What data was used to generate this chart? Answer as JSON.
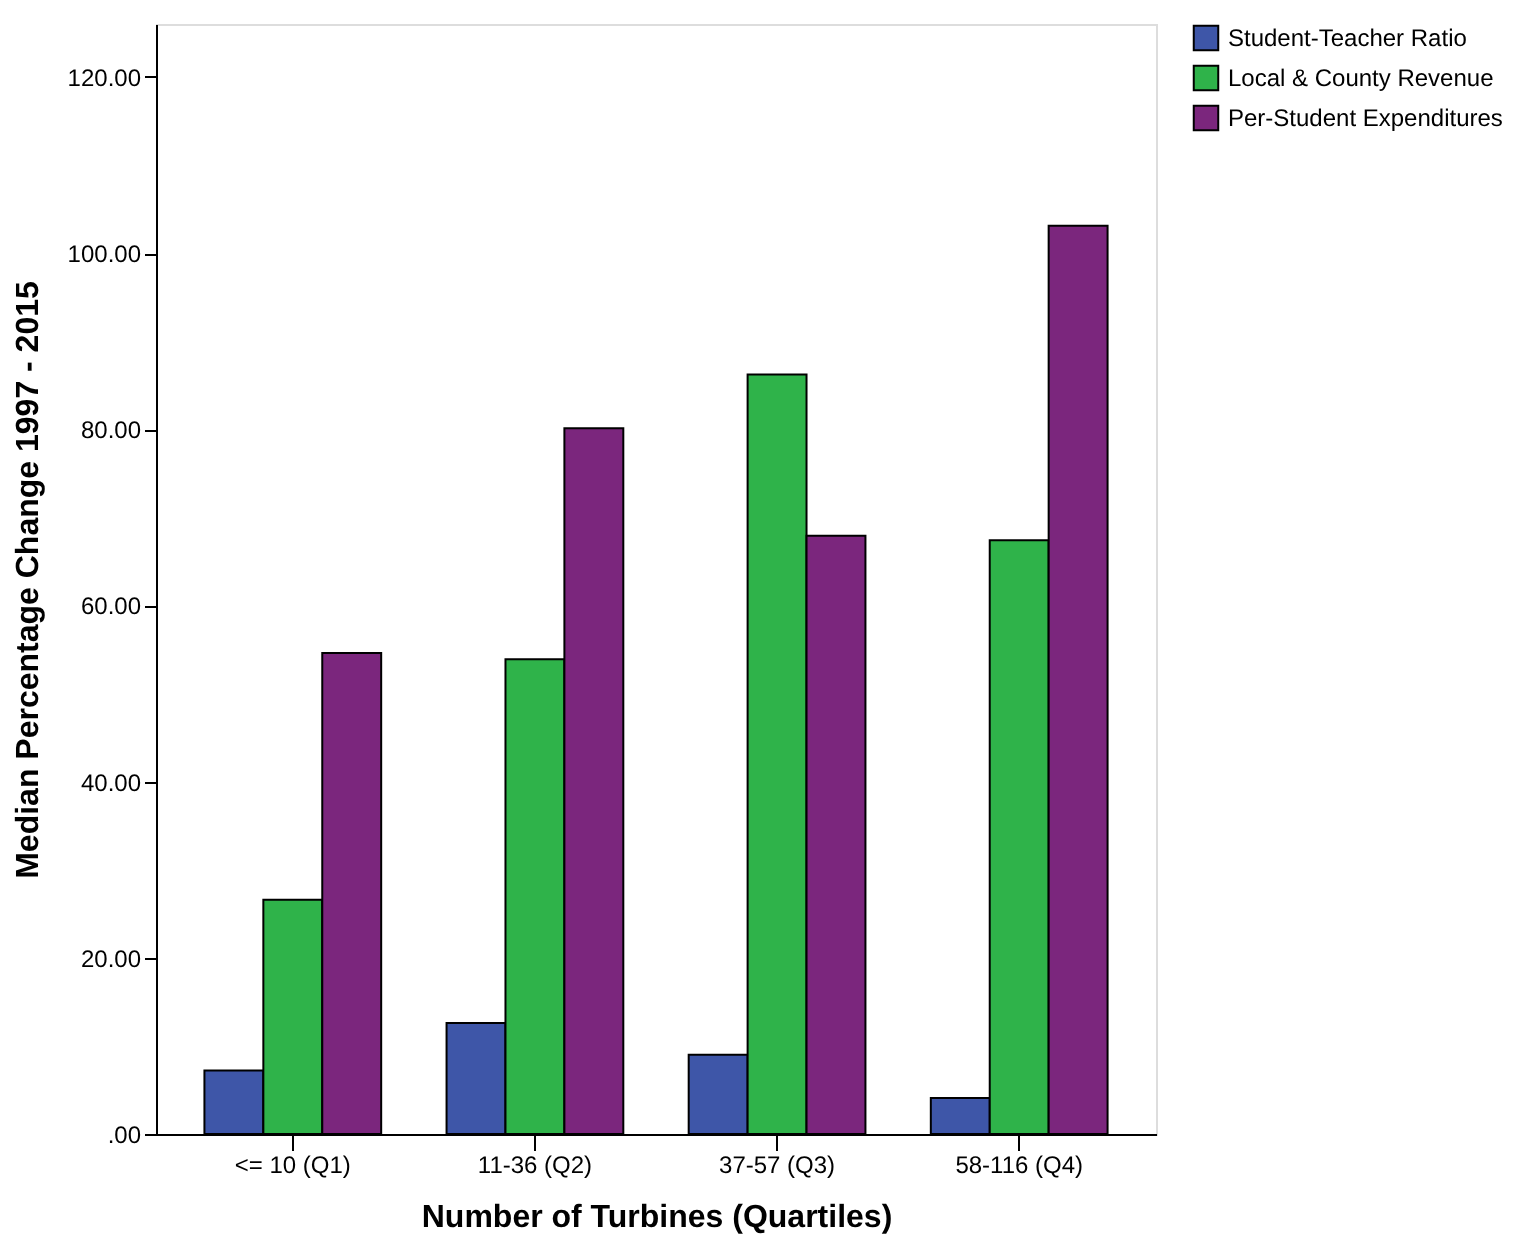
{
  "chart_data": {
    "type": "bar",
    "xlabel": "Number of Turbines (Quartiles)",
    "ylabel": "Median Percentage Change 1997 - 2015",
    "categories": [
      "<= 10 (Q1)",
      "11-36 (Q2)",
      "37-57 (Q3)",
      "58-116 (Q4)"
    ],
    "series": [
      {
        "name": "Student-Teacher Ratio",
        "color": "#3e56a8",
        "values": [
          7.2,
          12.6,
          9.0,
          4.1
        ]
      },
      {
        "name": "Local & County Revenue",
        "color": "#2fb34a",
        "values": [
          26.6,
          53.9,
          86.2,
          67.4
        ]
      },
      {
        "name": "Per-Student Expenditures",
        "color": "#7b267d",
        "values": [
          54.6,
          80.1,
          67.9,
          103.1
        ]
      }
    ],
    "ylim": [
      0,
      126
    ],
    "yticks": [
      {
        "value": 0,
        "label": ".00"
      },
      {
        "value": 20,
        "label": "20.00"
      },
      {
        "value": 40,
        "label": "40.00"
      },
      {
        "value": 60,
        "label": "60.00"
      },
      {
        "value": 80,
        "label": "80.00"
      },
      {
        "value": 100,
        "label": "100.00"
      },
      {
        "value": 120,
        "label": "120.00"
      }
    ],
    "grid": false,
    "legend": "top right"
  }
}
